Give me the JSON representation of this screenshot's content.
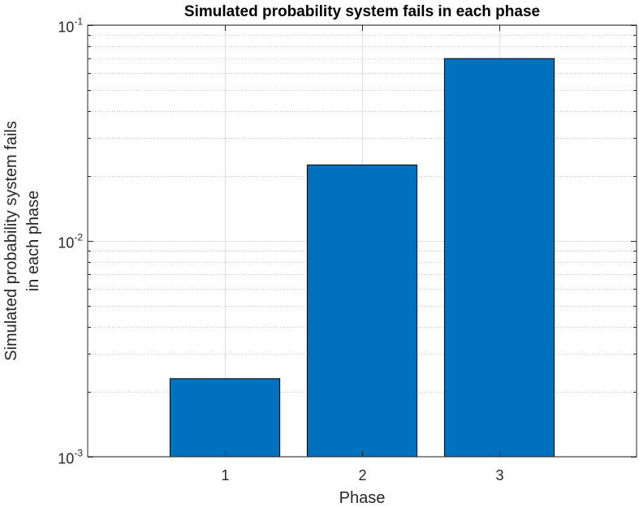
{
  "chart_data": {
    "type": "bar",
    "title": "Simulated probability system fails in each phase",
    "xlabel": "Phase",
    "ylabel_lines": [
      "Simulated probability system fails",
      "in each phase"
    ],
    "categories": [
      "1",
      "2",
      "3"
    ],
    "values": [
      0.0023,
      0.0225,
      0.07
    ],
    "yscale": "log",
    "ylim": [
      0.001,
      0.1
    ],
    "xlim": [
      0,
      4
    ],
    "ytick_labels": [
      {
        "base": "10",
        "exp": "-3"
      },
      {
        "base": "10",
        "exp": "-2"
      },
      {
        "base": "10",
        "exp": "-1"
      }
    ],
    "ytick_values": [
      0.001,
      0.01,
      0.1
    ],
    "grid": true,
    "bar_color": "#0072BD",
    "bar_edge_color": "#000000",
    "grid_color": "#dfdfdf",
    "axis_color": "#262626"
  }
}
